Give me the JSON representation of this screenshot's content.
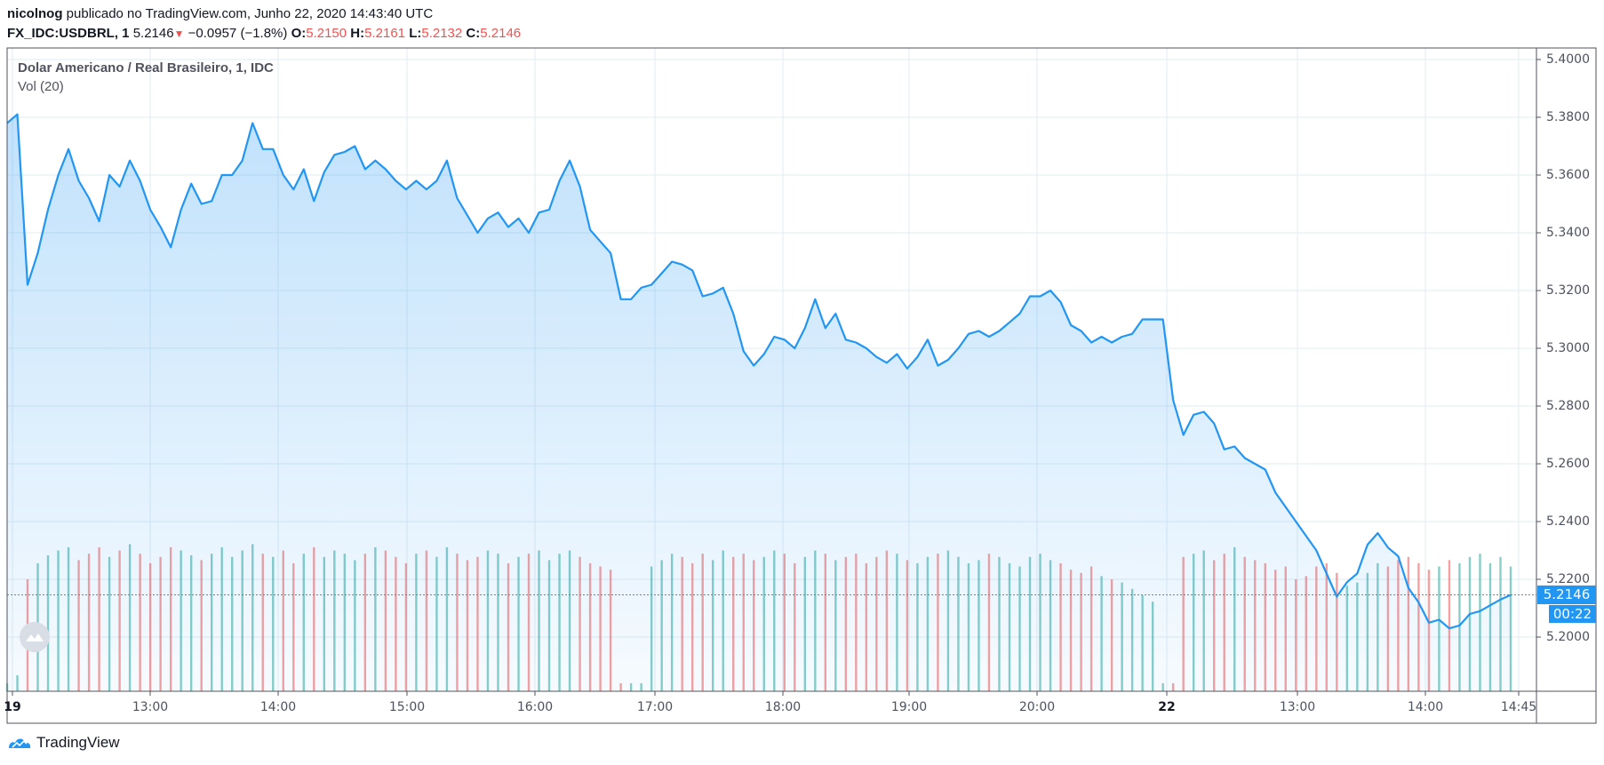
{
  "header": {
    "author": "nicolnog",
    "published": "publicado no TradingView.com, Junho 22, 2020 14:43:40 UTC",
    "symbol": "FX_IDC:USDBRL, 1",
    "last": "5.2146",
    "change": "−0.0957 (−1.8%)",
    "o_label": "O:",
    "o": "5.2150",
    "h_label": "H:",
    "h": "5.2161",
    "l_label": "L:",
    "l": "5.2132",
    "c_label": "C:",
    "c": "5.2146",
    "direction_icon": "triangle-down-icon"
  },
  "chart": {
    "title": "Dolar Americano / Real Brasileiro, 1, IDC",
    "volume_label": "Vol (20)",
    "current_price_label": "5.2146",
    "countdown": "00:22",
    "footer_brand": "TradingView"
  },
  "colors": {
    "line": "#2196f3",
    "up": "#26a69a",
    "down": "#ef5350",
    "grid": "#e1ecf2"
  },
  "chart_data": {
    "type": "area",
    "ylim": [
      5.19,
      5.405
    ],
    "y_ticks": [
      "5.4000",
      "5.3800",
      "5.3600",
      "5.3400",
      "5.3200",
      "5.3000",
      "5.2800",
      "5.2600",
      "5.2400",
      "5.2200",
      "5.2000"
    ],
    "x_ticks": [
      "19",
      "13:00",
      "14:00",
      "15:00",
      "16:00",
      "17:00",
      "18:00",
      "19:00",
      "20:00",
      "22",
      "13:00",
      "14:00",
      "14:45"
    ],
    "grid": true,
    "series": [
      {
        "values": [
          5.378,
          5.381,
          5.322,
          5.333,
          5.348,
          5.36,
          5.369,
          5.358,
          5.352,
          5.344,
          5.36,
          5.356,
          5.365,
          5.358,
          5.348,
          5.342,
          5.335,
          5.348,
          5.357,
          5.35,
          5.351,
          5.36,
          5.36,
          5.365,
          5.378,
          5.369,
          5.369,
          5.36,
          5.355,
          5.362,
          5.351,
          5.361,
          5.367,
          5.368,
          5.37,
          5.362,
          5.365,
          5.362,
          5.358,
          5.355,
          5.358,
          5.355,
          5.358,
          5.365,
          5.352,
          5.346,
          5.34,
          5.345,
          5.347,
          5.342,
          5.345,
          5.34,
          5.347,
          5.348,
          5.358,
          5.365,
          5.356,
          5.341,
          5.337,
          5.333,
          5.317,
          5.317,
          5.321,
          5.322,
          5.326,
          5.33,
          5.329,
          5.327,
          5.318,
          5.319,
          5.321,
          5.312,
          5.299,
          5.294,
          5.298,
          5.304,
          5.303,
          5.3,
          5.307,
          5.317,
          5.307,
          5.312,
          5.303,
          5.302,
          5.3,
          5.297,
          5.295,
          5.298,
          5.293,
          5.297,
          5.303,
          5.294,
          5.296,
          5.3,
          5.305,
          5.306,
          5.304,
          5.306,
          5.309,
          5.312,
          5.318,
          5.318,
          5.32,
          5.316,
          5.308,
          5.306,
          5.302,
          5.304,
          5.302,
          5.304,
          5.305,
          5.31,
          5.31,
          5.31,
          5.282,
          5.27,
          5.277,
          5.278,
          5.274,
          5.265,
          5.266,
          5.262,
          5.26,
          5.258,
          5.25,
          5.245,
          5.24,
          5.235,
          5.23,
          5.222,
          5.214,
          5.219,
          5.222,
          5.232,
          5.236,
          5.231,
          5.228,
          5.217,
          5.212,
          5.205,
          5.206,
          5.203,
          5.204,
          5.208,
          5.209,
          5.211,
          5.213,
          5.2146
        ]
      }
    ],
    "volume": [
      5,
      10,
      70,
      80,
      85,
      88,
      90,
      82,
      86,
      90,
      84,
      88,
      92,
      86,
      80,
      84,
      90,
      88,
      85,
      82,
      86,
      90,
      84,
      88,
      92,
      86,
      84,
      88,
      80,
      86,
      90,
      84,
      88,
      86,
      82,
      86,
      90,
      88,
      84,
      80,
      86,
      88,
      84,
      90,
      86,
      82,
      84,
      88,
      86,
      80,
      84,
      86,
      88,
      82,
      86,
      88,
      84,
      80,
      78,
      76,
      5,
      5,
      5,
      78,
      82,
      86,
      84,
      80,
      86,
      82,
      88,
      84,
      86,
      82,
      84,
      88,
      86,
      80,
      84,
      88,
      86,
      82,
      84,
      86,
      80,
      84,
      88,
      86,
      82,
      80,
      84,
      86,
      88,
      84,
      80,
      82,
      86,
      84,
      80,
      78,
      84,
      86,
      82,
      80,
      76,
      74,
      78,
      72,
      70,
      68,
      64,
      60,
      56,
      5,
      5,
      84,
      86,
      88,
      82,
      86,
      90,
      84,
      82,
      80,
      76,
      78,
      70,
      72,
      78,
      80,
      74,
      66,
      68,
      74,
      80,
      78,
      82,
      84,
      80,
      76,
      78,
      82,
      80,
      84,
      86,
      80,
      84,
      78
    ]
  }
}
